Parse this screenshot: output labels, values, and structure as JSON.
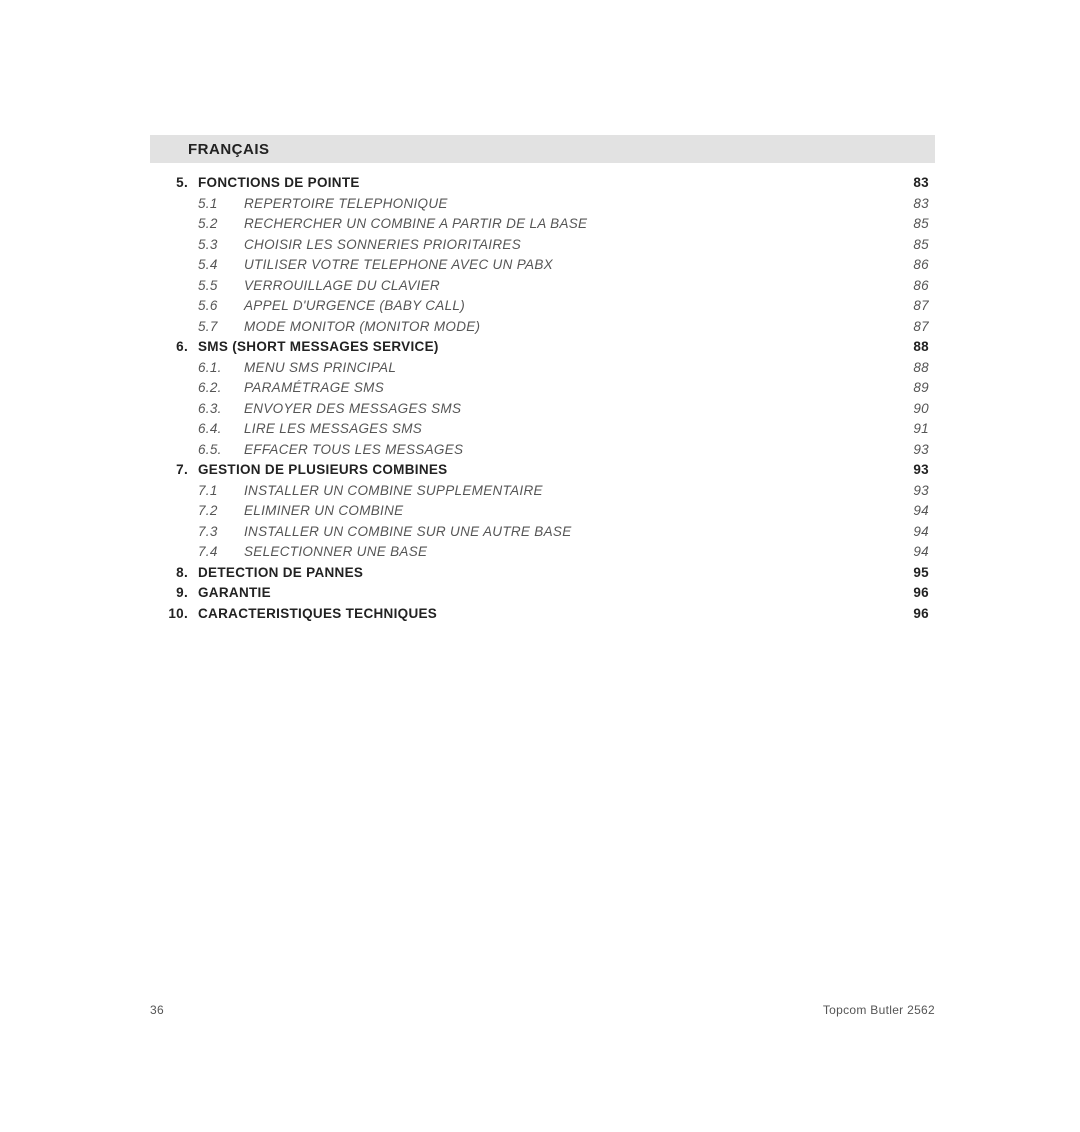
{
  "language_header": "FRANÇAIS",
  "footer": {
    "page_number": "36",
    "product": "Topcom Butler 2562"
  },
  "toc": [
    {
      "type": "section",
      "num": "5.",
      "title": "FONCTIONS DE POINTE",
      "page": "83"
    },
    {
      "type": "sub",
      "num": "5.1",
      "title": "REPERTOIRE TELEPHONIQUE",
      "page": "83"
    },
    {
      "type": "sub",
      "num": "5.2",
      "title": "RECHERCHER UN COMBINE A PARTIR DE LA BASE",
      "page": "85"
    },
    {
      "type": "sub",
      "num": "5.3",
      "title": "CHOISIR LES SONNERIES PRIORITAIRES",
      "page": "85"
    },
    {
      "type": "sub",
      "num": "5.4",
      "title": "UTILISER VOTRE TELEPHONE AVEC UN PABX",
      "page": "86"
    },
    {
      "type": "sub",
      "num": "5.5",
      "title": "VERROUILLAGE DU CLAVIER",
      "page": "86"
    },
    {
      "type": "sub",
      "num": "5.6",
      "title": "APPEL D'URGENCE (BABY CALL)",
      "page": "87"
    },
    {
      "type": "sub",
      "num": "5.7",
      "title": "MODE MONITOR (MONITOR MODE)",
      "page": "87"
    },
    {
      "type": "section",
      "num": "6.",
      "title": "SMS (SHORT MESSAGES SERVICE)",
      "page": "88"
    },
    {
      "type": "sub",
      "num": "6.1.",
      "title": "MENU SMS PRINCIPAL",
      "page": "88"
    },
    {
      "type": "sub",
      "num": "6.2.",
      "title": "PARAMÉTRAGE SMS",
      "page": "89"
    },
    {
      "type": "sub",
      "num": "6.3.",
      "title": "ENVOYER DES MESSAGES SMS",
      "page": "90"
    },
    {
      "type": "sub",
      "num": "6.4.",
      "title": "LIRE LES MESSAGES SMS",
      "page": "91"
    },
    {
      "type": "sub",
      "num": "6.5.",
      "title": "EFFACER TOUS LES MESSAGES",
      "page": "93"
    },
    {
      "type": "section",
      "num": "7.",
      "title": "GESTION DE PLUSIEURS COMBINES",
      "page": "93"
    },
    {
      "type": "sub",
      "num": "7.1",
      "title": "INSTALLER UN COMBINE SUPPLEMENTAIRE",
      "page": "93"
    },
    {
      "type": "sub",
      "num": "7.2",
      "title": "ELIMINER UN COMBINE",
      "page": "94"
    },
    {
      "type": "sub",
      "num": "7.3",
      "title": "INSTALLER UN COMBINE SUR UNE AUTRE BASE",
      "page": "94"
    },
    {
      "type": "sub",
      "num": "7.4",
      "title": "SELECTIONNER UNE BASE",
      "page": "94"
    },
    {
      "type": "section",
      "num": "8.",
      "title": "DETECTION DE PANNES",
      "page": "95"
    },
    {
      "type": "section",
      "num": "9.",
      "title": "GARANTIE",
      "page": "96"
    },
    {
      "type": "section",
      "num": "10.",
      "title": "CARACTERISTIQUES TECHNIQUES",
      "page": "96"
    }
  ]
}
